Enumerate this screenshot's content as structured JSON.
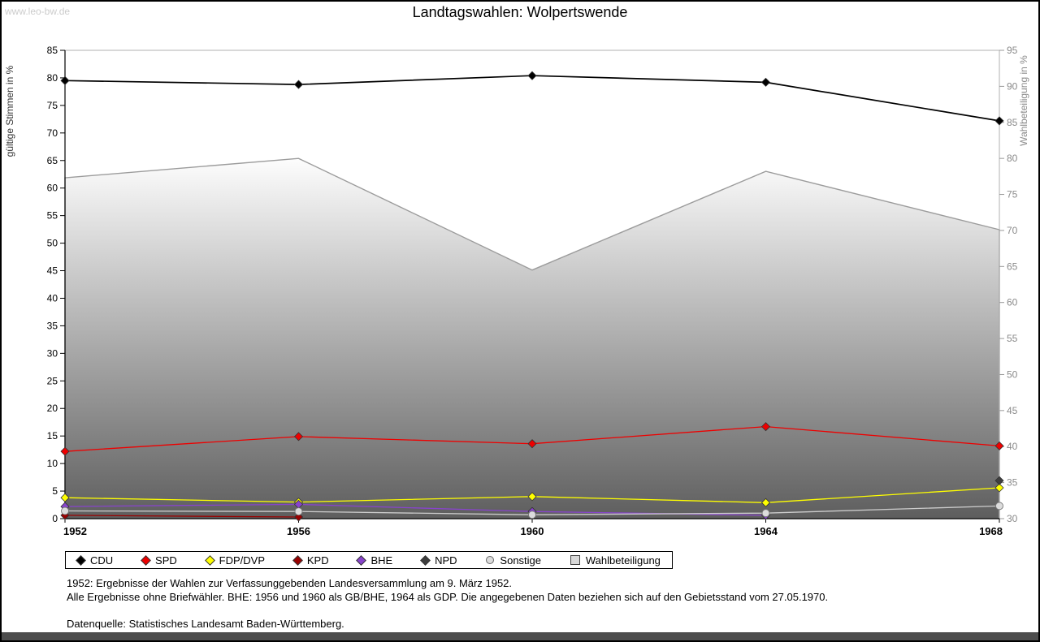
{
  "watermark": "www.leo-bw.de",
  "title": "Landtagswahlen: Wolpertswende",
  "chart_data": {
    "type": "line",
    "x": [
      1952,
      1956,
      1960,
      1964,
      1968
    ],
    "left_axis": {
      "label": "gültige Stimmen in %",
      "min": 0,
      "max": 85,
      "step": 5
    },
    "right_axis": {
      "label": "Wahlbeteiligung in %",
      "min": 30,
      "max": 95,
      "step": 5
    },
    "grid": false,
    "series": [
      {
        "name": "CDU",
        "color": "#000000",
        "marker": "diamond",
        "axis": "left",
        "values": [
          79.5,
          78.8,
          80.4,
          79.2,
          72.2
        ]
      },
      {
        "name": "SPD",
        "color": "#ee0000",
        "marker": "diamond",
        "axis": "left",
        "values": [
          12.2,
          14.9,
          13.6,
          16.7,
          13.2
        ]
      },
      {
        "name": "FDP/DVP",
        "color": "#ffff00",
        "marker": "diamond",
        "axis": "left",
        "values": [
          3.8,
          3.0,
          4.0,
          2.9,
          5.6
        ]
      },
      {
        "name": "KPD",
        "color": "#990000",
        "marker": "diamond",
        "axis": "left",
        "values": [
          0.6,
          0.3,
          null,
          null,
          null
        ]
      },
      {
        "name": "BHE",
        "color": "#8844cc",
        "marker": "diamond",
        "axis": "left",
        "values": [
          2.2,
          2.6,
          1.3,
          0.6,
          null
        ]
      },
      {
        "name": "NPD",
        "color": "#3f3f3f",
        "marker": "diamond",
        "axis": "left",
        "values": [
          null,
          null,
          null,
          null,
          6.9
        ]
      },
      {
        "name": "Sonstige",
        "color": "#cccccc",
        "marker": "circle",
        "axis": "left",
        "values": [
          1.4,
          1.3,
          0.7,
          1.0,
          2.3
        ]
      },
      {
        "name": "Wahlbeteiligung",
        "color": "#d9d9d9",
        "marker": "square",
        "axis": "right",
        "type": "area",
        "values": [
          77.3,
          80.0,
          64.5,
          78.2,
          70.1
        ]
      }
    ],
    "area_gradient": {
      "top": "#fdfdfd",
      "bottom": "#5e5e5e",
      "outline": "#9c9c9c"
    }
  },
  "footnotes": [
    "1952: Ergebnisse der Wahlen zur Verfassunggebenden Landesversammlung am 9. März 1952.",
    "Alle Ergebnisse ohne Briefwähler. BHE: 1956 und 1960 als GB/BHE, 1964 als GDP. Die angegebenen Daten beziehen sich auf den Gebietsstand vom 27.05.1970.",
    "Datenquelle: Statistisches Landesamt Baden-Württemberg."
  ]
}
